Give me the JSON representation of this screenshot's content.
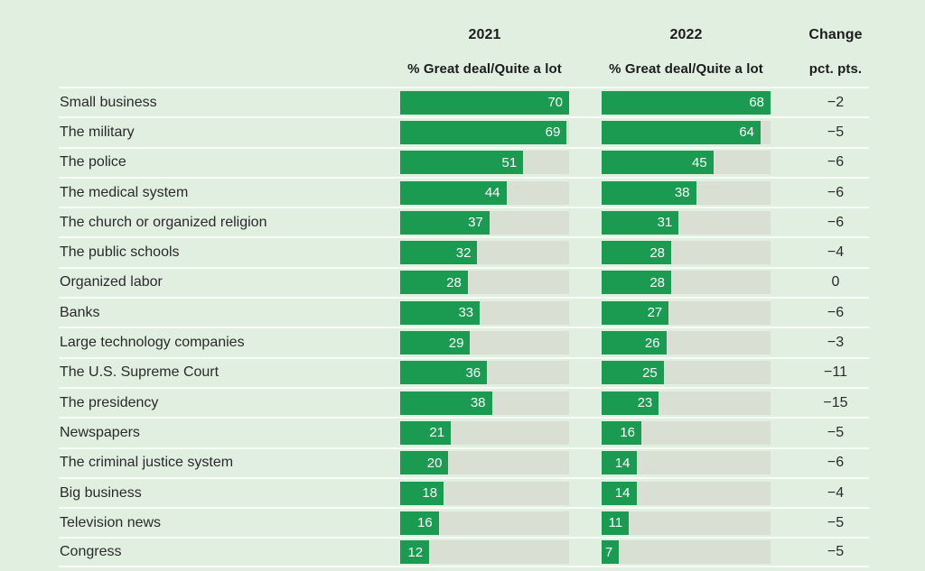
{
  "header": {
    "col_2021": "2021",
    "col_2022": "2022",
    "col_change": "Change",
    "sub_2021": "% Great deal/Quite a lot",
    "sub_2022": "% Great deal/Quite a lot",
    "sub_change": "pct. pts."
  },
  "colors": {
    "background": "#e0efe0",
    "bar": "#1b9b51",
    "track": "#d9e0d3",
    "separator": "#f8fcf7",
    "label_text": "#2a2a2a",
    "bar_value_text": "#ffffff",
    "header_text": "#1c1c1c"
  },
  "chart_data": {
    "type": "bar",
    "title": "",
    "subtitle": "",
    "categories": [
      "Small business",
      "The military",
      "The police",
      "The medical system",
      "The church or organized religion",
      "The public schools",
      "Organized labor",
      "Banks",
      "Large technology companies",
      "The U.S. Supreme Court",
      "The presidency",
      "Newspapers",
      "The criminal justice system",
      "Big business",
      "Television news",
      "Congress"
    ],
    "series": [
      {
        "name": "2021 % Great deal/Quite a lot",
        "values": [
          70,
          69,
          51,
          44,
          37,
          32,
          28,
          33,
          29,
          36,
          38,
          21,
          20,
          18,
          16,
          12
        ]
      },
      {
        "name": "2022 % Great deal/Quite a lot",
        "values": [
          68,
          64,
          45,
          38,
          31,
          28,
          28,
          27,
          26,
          25,
          23,
          16,
          14,
          14,
          11,
          7
        ]
      },
      {
        "name": "Change pct. pts.",
        "values": [
          -2,
          -5,
          -6,
          -6,
          -6,
          -4,
          0,
          -6,
          -3,
          -11,
          -15,
          -5,
          -6,
          -4,
          -5,
          -5
        ]
      }
    ],
    "bar_scale_max_2021": 70,
    "bar_scale_max_2022": 68,
    "orientation": "horizontal",
    "grid": false,
    "legend_position": "none",
    "value_labels": "inside-bar-right"
  }
}
